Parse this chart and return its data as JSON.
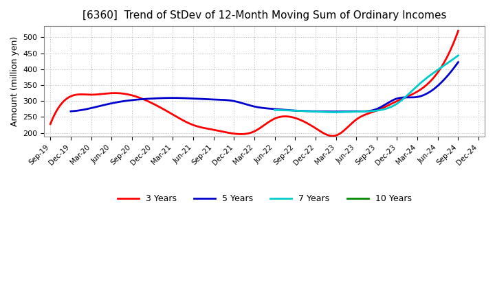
{
  "title": "[6360]  Trend of StDev of 12-Month Moving Sum of Ordinary Incomes",
  "ylabel": "Amount (million yen)",
  "ylim": [
    188,
    535
  ],
  "yticks": [
    200,
    250,
    300,
    350,
    400,
    450,
    500
  ],
  "background_color": "#ffffff",
  "grid_color": "#bbbbbb",
  "x_labels": [
    "Sep-19",
    "Dec-19",
    "Mar-20",
    "Jun-20",
    "Sep-20",
    "Dec-20",
    "Mar-21",
    "Jun-21",
    "Sep-21",
    "Dec-21",
    "Mar-22",
    "Jun-22",
    "Sep-22",
    "Dec-22",
    "Mar-23",
    "Jun-23",
    "Sep-23",
    "Dec-23",
    "Mar-24",
    "Jun-24",
    "Sep-24",
    "Dec-24"
  ],
  "series": {
    "3 Years": {
      "color": "#ff0000",
      "data": [
        228,
        315,
        320,
        325,
        318,
        293,
        258,
        225,
        210,
        198,
        205,
        245,
        247,
        215,
        192,
        242,
        270,
        300,
        330,
        390,
        520,
        null
      ]
    },
    "5 Years": {
      "color": "#0000cc",
      "data": [
        null,
        268,
        278,
        293,
        303,
        308,
        310,
        308,
        305,
        300,
        283,
        275,
        270,
        268,
        267,
        268,
        275,
        308,
        313,
        348,
        422,
        null
      ]
    },
    "7 Years": {
      "color": "#00cccc",
      "data": [
        null,
        null,
        null,
        null,
        null,
        null,
        null,
        null,
        null,
        null,
        null,
        272,
        270,
        267,
        265,
        267,
        270,
        292,
        348,
        398,
        443,
        null
      ]
    },
    "10 Years": {
      "color": "#008800",
      "data": [
        null,
        null,
        null,
        null,
        null,
        null,
        null,
        null,
        null,
        null,
        null,
        null,
        null,
        null,
        null,
        null,
        null,
        null,
        null,
        null,
        null,
        null
      ]
    }
  },
  "legend_entries": [
    "3 Years",
    "5 Years",
    "7 Years",
    "10 Years"
  ],
  "legend_colors": [
    "#ff0000",
    "#0000cc",
    "#00cccc",
    "#008800"
  ],
  "title_fontsize": 11,
  "title_fontweight": "normal",
  "ylabel_fontsize": 9
}
